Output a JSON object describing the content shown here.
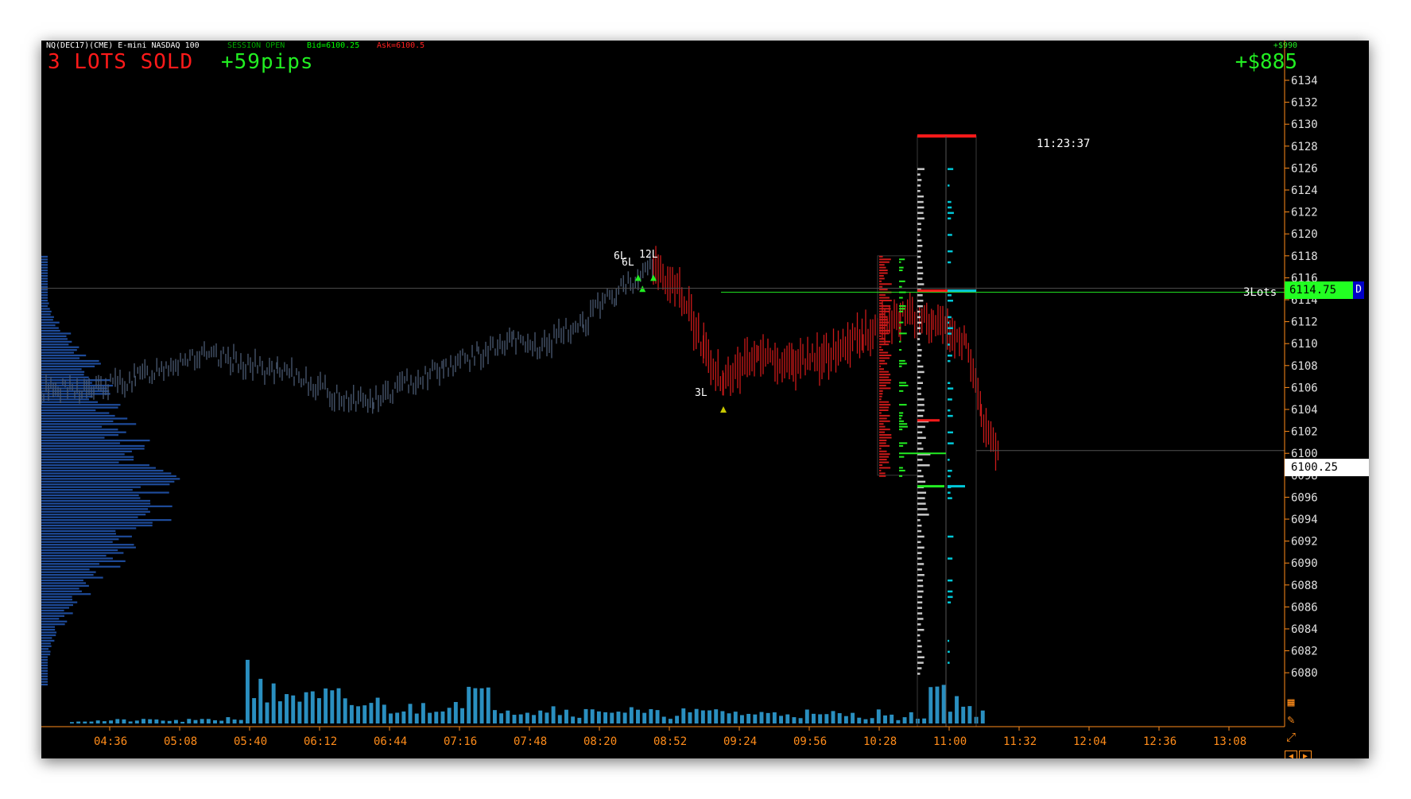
{
  "header": {
    "symbol_info": "NQ(DEC17)(CME) E-mini NASDAQ 100",
    "session_status": "SESSION OPEN",
    "bid": "Bid=6100.25",
    "ask": "Ask=6100.5",
    "trade_status": "3 LOTS SOLD",
    "pips": "+59pips",
    "pnl_small": "+$990",
    "pnl_big": "+$885"
  },
  "clock": "11:23:37",
  "price_tags": {
    "bid": "6100.25",
    "last": "6114.75",
    "last_flag": "D",
    "position_size": "3Lots"
  },
  "trade_labels": [
    "6L",
    "6L",
    "12L",
    "3L"
  ],
  "price_axis": {
    "labels": [
      "6134",
      "6132",
      "6130",
      "6128",
      "6126",
      "6124",
      "6122",
      "6120",
      "6118",
      "6116",
      "6114",
      "6112",
      "6110",
      "6108",
      "6106",
      "6104",
      "6102",
      "6100",
      "6098",
      "6096",
      "6094",
      "6092",
      "6090",
      "6088",
      "6086",
      "6084",
      "6082",
      "6080"
    ]
  },
  "time_axis": {
    "labels": [
      "04:36",
      "05:08",
      "05:40",
      "06:12",
      "06:44",
      "07:16",
      "07:48",
      "08:20",
      "08:52",
      "09:24",
      "09:56",
      "10:28",
      "11:00",
      "11:32",
      "12:04",
      "12:36",
      "13:08"
    ]
  },
  "toolbar": {
    "grid_icon": "grid-icon",
    "pencil_icon": "pencil-icon",
    "expand_icon": "expand-icon",
    "scroll_left": "left-arrow-icon",
    "scroll_right": "right-arrow-icon"
  },
  "colors": {
    "background": "#000000",
    "axis": "#ff8c1a",
    "bull_bars": "#4a5a72",
    "bear_bars": "#cc1a1a",
    "volume": "#2a8fc0",
    "profile": "#1e4b9a",
    "buy": "#22ee22",
    "sell": "#ff1a1a",
    "tick_profile": "#c8c8c8",
    "cyan_profile": "#00c8d8"
  },
  "chart_data": {
    "type": "bar",
    "x_axis_ticks": [
      "04:36",
      "05:08",
      "05:40",
      "06:12",
      "06:44",
      "07:16",
      "07:48",
      "08:20",
      "08:52",
      "09:24",
      "09:56",
      "10:28",
      "11:00",
      "11:32",
      "12:04",
      "12:36",
      "13:08"
    ],
    "y_axis_ticks": [
      6134,
      6132,
      6130,
      6128,
      6126,
      6124,
      6122,
      6120,
      6118,
      6116,
      6114,
      6112,
      6110,
      6108,
      6106,
      6104,
      6102,
      6100,
      6098,
      6096,
      6094,
      6092,
      6090,
      6088,
      6086,
      6084,
      6082,
      6080
    ],
    "ylim": [
      6079,
      6134.5
    ],
    "bid": 6100.25,
    "last": 6114.75,
    "price_series": [
      {
        "t": "04:00",
        "p": 6105.7
      },
      {
        "t": "04:36",
        "p": 6105.8
      },
      {
        "t": "04:55",
        "p": 6106.8
      },
      {
        "t": "05:08",
        "p": 6107.9
      },
      {
        "t": "05:20",
        "p": 6108.9
      },
      {
        "t": "05:40",
        "p": 6108.5
      },
      {
        "t": "06:00",
        "p": 6107.3
      },
      {
        "t": "06:12",
        "p": 6106.9
      },
      {
        "t": "06:25",
        "p": 6105.3
      },
      {
        "t": "06:44",
        "p": 6104.7
      },
      {
        "t": "07:00",
        "p": 6106.5
      },
      {
        "t": "07:16",
        "p": 6107.9
      },
      {
        "t": "07:32",
        "p": 6109.0
      },
      {
        "t": "07:48",
        "p": 6110.2
      },
      {
        "t": "08:00",
        "p": 6109.6
      },
      {
        "t": "08:20",
        "p": 6112.0
      },
      {
        "t": "08:35",
        "p": 6114.6
      },
      {
        "t": "08:45",
        "p": 6116.2
      },
      {
        "t": "08:52",
        "p": 6117.0
      },
      {
        "t": "09:05",
        "p": 6114.5
      },
      {
        "t": "09:15",
        "p": 6109.7
      },
      {
        "t": "09:24",
        "p": 6106.4
      },
      {
        "t": "09:40",
        "p": 6109.2
      },
      {
        "t": "09:56",
        "p": 6108.1
      },
      {
        "t": "10:10",
        "p": 6108.8
      },
      {
        "t": "10:28",
        "p": 6110.7
      },
      {
        "t": "10:45",
        "p": 6112.6
      },
      {
        "t": "11:00",
        "p": 6111.9
      },
      {
        "t": "11:15",
        "p": 6110.0
      },
      {
        "t": "11:22",
        "p": 6103.6
      },
      {
        "t": "11:30",
        "p": 6099.6
      }
    ],
    "volume_series": [
      0.05,
      0.05,
      0.06,
      0.06,
      0.07,
      0.05,
      0.06,
      0.08,
      0.1,
      0.95,
      0.55,
      0.6,
      0.45,
      0.5,
      0.35,
      0.4,
      0.3,
      0.28,
      0.35,
      0.42,
      0.6,
      0.5,
      0.32,
      0.28,
      0.3,
      0.25,
      0.22,
      0.3,
      0.25,
      0.2,
      0.18,
      0.22,
      0.2,
      0.25,
      0.2,
      0.18,
      0.22,
      0.2,
      0.15,
      0.18,
      0.16,
      0.2,
      0.12,
      0.15,
      0.7,
      0.45,
      0.25
    ],
    "trades": [
      {
        "time": "08:45",
        "price": 6116,
        "label": "6L"
      },
      {
        "time": "08:47",
        "price": 6115,
        "label": "6L"
      },
      {
        "time": "08:52",
        "price": 6116,
        "label": "12L"
      },
      {
        "time": "09:24",
        "price": 6104,
        "label": "3L"
      }
    ]
  }
}
